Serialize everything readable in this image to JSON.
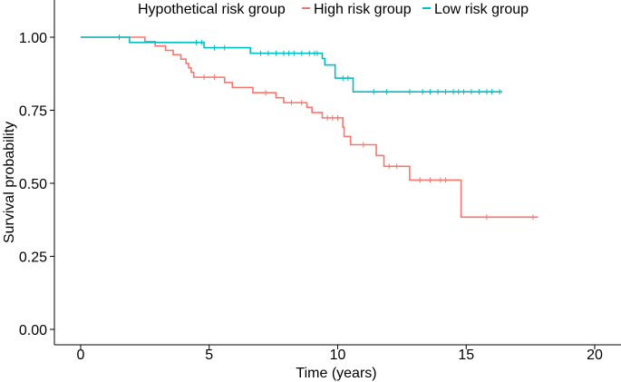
{
  "chart_data": {
    "type": "line",
    "subtype": "kaplan-meier",
    "title": "",
    "xlabel": "Time (years)",
    "ylabel": "Survival probability",
    "xlim": [
      0,
      20
    ],
    "ylim": [
      0,
      1
    ],
    "x_ticks": [
      0,
      5,
      10,
      15,
      20
    ],
    "x_tick_labels": [
      "0",
      "5",
      "10",
      "15",
      "20"
    ],
    "y_ticks": [
      0,
      0.25,
      0.5,
      0.75,
      1.0
    ],
    "y_tick_labels": [
      "0.00",
      "0.25",
      "0.50",
      "0.75",
      "1.00"
    ],
    "grid": false,
    "legend": {
      "title": "Hypothetical risk group",
      "position": "top"
    },
    "series": [
      {
        "name": "High risk group",
        "color": "#F8766D",
        "steps": [
          [
            0,
            1.0
          ],
          [
            2.5,
            0.985
          ],
          [
            2.9,
            0.97
          ],
          [
            3.3,
            0.955
          ],
          [
            3.6,
            0.94
          ],
          [
            3.9,
            0.925
          ],
          [
            4.1,
            0.91
          ],
          [
            4.2,
            0.895
          ],
          [
            4.3,
            0.88
          ],
          [
            4.4,
            0.863
          ],
          [
            5.6,
            0.845
          ],
          [
            5.9,
            0.828
          ],
          [
            6.7,
            0.81
          ],
          [
            7.6,
            0.793
          ],
          [
            7.9,
            0.776
          ],
          [
            8.8,
            0.76
          ],
          [
            9.0,
            0.742
          ],
          [
            9.4,
            0.724
          ],
          [
            10.2,
            0.692
          ],
          [
            10.25,
            0.66
          ],
          [
            10.5,
            0.632
          ],
          [
            11.5,
            0.595
          ],
          [
            11.8,
            0.558
          ],
          [
            12.8,
            0.511
          ],
          [
            14.8,
            0.384
          ],
          [
            17.8,
            0.384
          ]
        ],
        "censored": [
          [
            4.8,
            0.863
          ],
          [
            5.2,
            0.863
          ],
          [
            7.2,
            0.81
          ],
          [
            8.2,
            0.776
          ],
          [
            8.6,
            0.776
          ],
          [
            9.6,
            0.724
          ],
          [
            9.8,
            0.724
          ],
          [
            10.0,
            0.724
          ],
          [
            11.0,
            0.632
          ],
          [
            12.0,
            0.558
          ],
          [
            12.3,
            0.558
          ],
          [
            13.2,
            0.511
          ],
          [
            13.6,
            0.511
          ],
          [
            14.0,
            0.511
          ],
          [
            14.2,
            0.511
          ],
          [
            15.8,
            0.384
          ],
          [
            17.6,
            0.384
          ]
        ]
      },
      {
        "name": "Low risk group",
        "color": "#00BFC4",
        "steps": [
          [
            0,
            1.0
          ],
          [
            1.9,
            0.982
          ],
          [
            4.8,
            0.964
          ],
          [
            6.6,
            0.945
          ],
          [
            9.4,
            0.927
          ],
          [
            9.5,
            0.905
          ],
          [
            9.9,
            0.86
          ],
          [
            10.6,
            0.813
          ],
          [
            16.4,
            0.813
          ]
        ],
        "censored": [
          [
            1.5,
            1.0
          ],
          [
            4.5,
            0.982
          ],
          [
            4.7,
            0.982
          ],
          [
            5.2,
            0.964
          ],
          [
            5.6,
            0.964
          ],
          [
            7.0,
            0.945
          ],
          [
            7.3,
            0.945
          ],
          [
            7.6,
            0.945
          ],
          [
            7.9,
            0.945
          ],
          [
            8.1,
            0.945
          ],
          [
            8.3,
            0.945
          ],
          [
            8.6,
            0.945
          ],
          [
            8.9,
            0.945
          ],
          [
            9.1,
            0.945
          ],
          [
            9.2,
            0.945
          ],
          [
            10.2,
            0.86
          ],
          [
            10.4,
            0.86
          ],
          [
            11.4,
            0.813
          ],
          [
            11.9,
            0.813
          ],
          [
            12.8,
            0.813
          ],
          [
            13.3,
            0.813
          ],
          [
            13.6,
            0.813
          ],
          [
            13.9,
            0.813
          ],
          [
            14.2,
            0.813
          ],
          [
            14.5,
            0.813
          ],
          [
            14.7,
            0.813
          ],
          [
            14.9,
            0.813
          ],
          [
            15.2,
            0.813
          ],
          [
            15.5,
            0.813
          ],
          [
            15.8,
            0.813
          ],
          [
            16.0,
            0.813
          ],
          [
            16.3,
            0.813
          ]
        ]
      }
    ]
  }
}
